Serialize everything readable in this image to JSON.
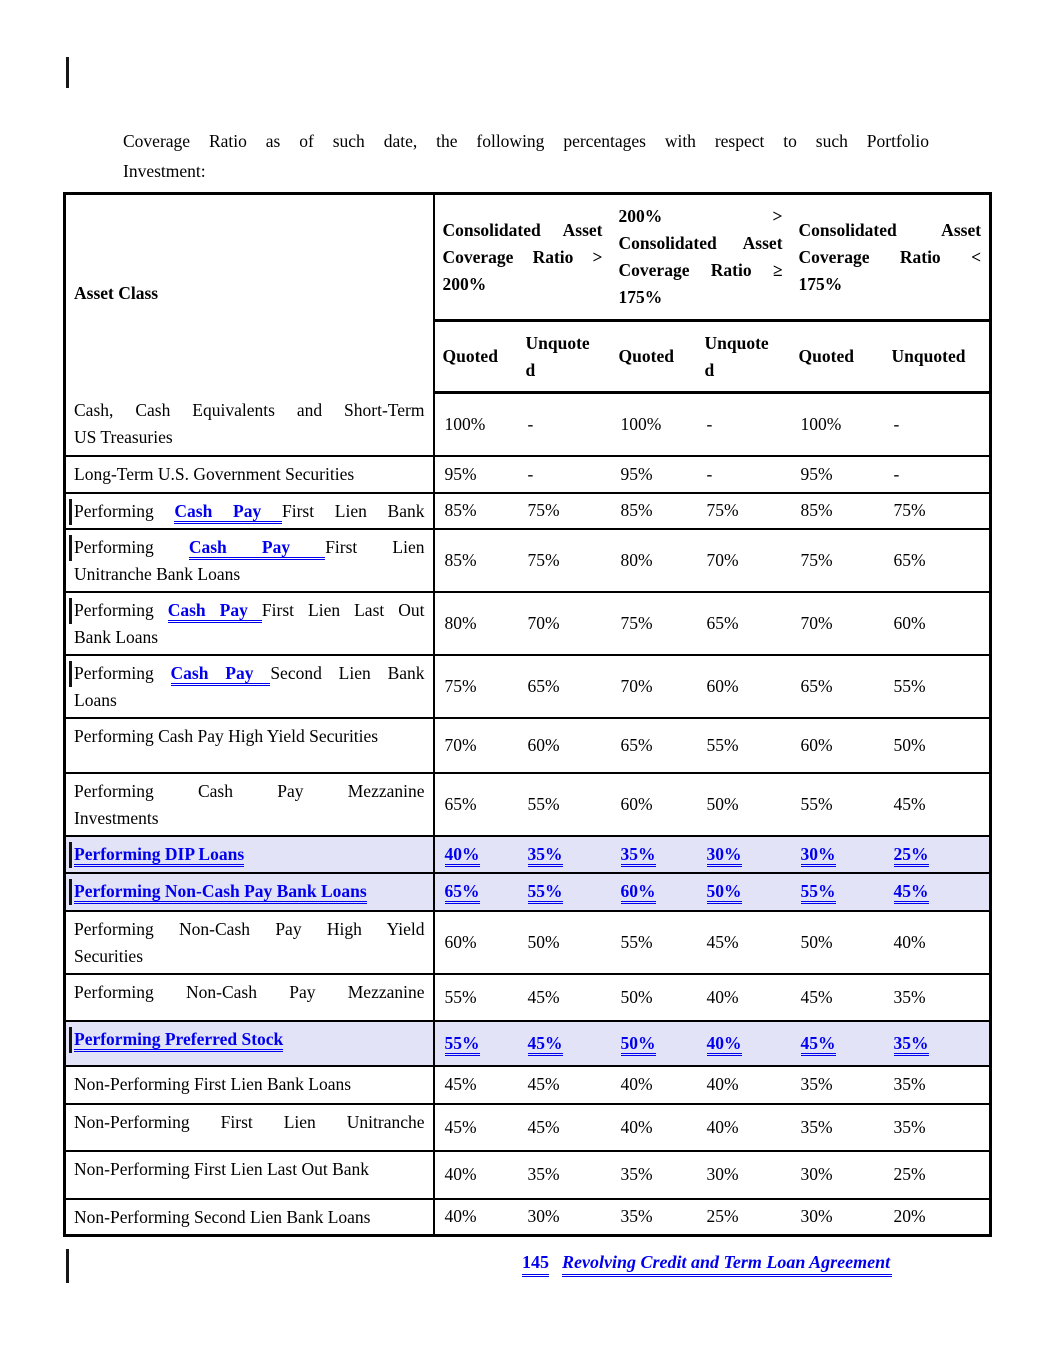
{
  "intro": {
    "line1": "Coverage Ratio as of such date, the following percentages with respect to such Portfolio",
    "line2": "Investment:"
  },
  "footer": {
    "page_number": "145",
    "doc_title": "Revolving Credit and Term Loan Agreement"
  },
  "colors": {
    "link_blue": "#0000EE",
    "highlight_bg": "#E3E3F7",
    "border_black": "#000000"
  },
  "table": {
    "asset_class_label": "Asset Class",
    "group_headers": [
      {
        "lines": [
          "Consolidated Asset",
          "Coverage Ratio >",
          "200%"
        ]
      },
      {
        "lines": [
          "200% >",
          "Consolidated Asset",
          "Coverage Ratio ≥",
          "175%"
        ]
      },
      {
        "lines": [
          "Consolidated Asset",
          "Coverage Ratio <",
          "175%"
        ]
      }
    ],
    "sub_headers": [
      {
        "lines": [
          "Quoted"
        ]
      },
      {
        "lines": [
          "Unquote",
          "d"
        ]
      },
      {
        "lines": [
          "Quoted"
        ]
      },
      {
        "lines": [
          "Unquote",
          "d"
        ]
      },
      {
        "lines": [
          "Quoted"
        ]
      },
      {
        "lines": [
          "Unquoted"
        ]
      }
    ],
    "rows": [
      {
        "label_lines": [
          "Cash, Cash Equivalents and Short-Term",
          "US Treasuries"
        ],
        "j": "auto",
        "bar": false,
        "highlight": false,
        "values": [
          "100%",
          "-",
          "100%",
          "-",
          "100%",
          "-"
        ]
      },
      {
        "label_lines": [
          "Long-Term U.S. Government Securities"
        ],
        "j": "none",
        "bar": false,
        "highlight": false,
        "values": [
          "95%",
          "-",
          "95%",
          "-",
          "95%",
          "-"
        ]
      },
      {
        "label_lines": [
          [
            {
              "t": "Performing ",
              "s": "p"
            },
            {
              "t": "Cash Pay ",
              "s": "l"
            },
            {
              "t": "First Lien Bank",
              "s": "p"
            }
          ]
        ],
        "j": "all",
        "bar": true,
        "highlight": false,
        "values": [
          "85%",
          "75%",
          "85%",
          "75%",
          "85%",
          "75%"
        ]
      },
      {
        "label_lines": [
          [
            {
              "t": "Performing ",
              "s": "p"
            },
            {
              "t": "Cash Pay ",
              "s": "l"
            },
            {
              "t": "First Lien",
              "s": "p"
            }
          ],
          "Unitranche Bank Loans"
        ],
        "j": "auto",
        "bar": true,
        "highlight": false,
        "values": [
          "85%",
          "75%",
          "80%",
          "70%",
          "75%",
          "65%"
        ]
      },
      {
        "label_lines": [
          [
            {
              "t": "Performing ",
              "s": "p"
            },
            {
              "t": "Cash Pay ",
              "s": "l"
            },
            {
              "t": "First Lien Last Out",
              "s": "p"
            }
          ],
          "Bank Loans"
        ],
        "j": "auto",
        "bar": true,
        "highlight": false,
        "values": [
          "80%",
          "70%",
          "75%",
          "65%",
          "70%",
          "60%"
        ]
      },
      {
        "label_lines": [
          [
            {
              "t": "Performing ",
              "s": "p"
            },
            {
              "t": "Cash Pay ",
              "s": "l"
            },
            {
              "t": "Second Lien Bank",
              "s": "p"
            }
          ],
          "Loans"
        ],
        "j": "auto",
        "bar": true,
        "highlight": false,
        "values": [
          "75%",
          "65%",
          "70%",
          "60%",
          "65%",
          "55%"
        ]
      },
      {
        "label_lines": [
          "Performing Cash Pay High Yield Securities"
        ],
        "j": "none",
        "bar": false,
        "highlight": false,
        "values": [
          "70%",
          "60%",
          "65%",
          "55%",
          "60%",
          "50%"
        ]
      },
      {
        "label_lines": [
          "Performing Cash Pay Mezzanine",
          "Investments"
        ],
        "j": "auto",
        "bar": false,
        "highlight": false,
        "values": [
          "65%",
          "55%",
          "60%",
          "50%",
          "55%",
          "45%"
        ]
      },
      {
        "label_lines": [
          "Performing DIP Loans"
        ],
        "j": "none",
        "bar": true,
        "highlight": true,
        "values": [
          "40%",
          "35%",
          "35%",
          "30%",
          "30%",
          "25%"
        ]
      },
      {
        "label_lines": [
          "Performing Non-Cash Pay Bank Loans"
        ],
        "j": "none",
        "bar": true,
        "highlight": true,
        "values": [
          "65%",
          "55%",
          "60%",
          "50%",
          "55%",
          "45%"
        ]
      },
      {
        "label_lines": [
          "Performing Non-Cash Pay High Yield",
          "Securities"
        ],
        "j": "auto",
        "bar": false,
        "highlight": false,
        "values": [
          "60%",
          "50%",
          "55%",
          "45%",
          "50%",
          "40%"
        ]
      },
      {
        "label_lines": [
          "Performing Non-Cash Pay Mezzanine"
        ],
        "j": "all",
        "bar": false,
        "highlight": false,
        "values": [
          "55%",
          "45%",
          "50%",
          "40%",
          "45%",
          "35%"
        ]
      },
      {
        "label_lines": [
          "Performing Preferred Stock"
        ],
        "j": "none",
        "bar": true,
        "highlight": true,
        "values": [
          "55%",
          "45%",
          "50%",
          "40%",
          "45%",
          "35%"
        ]
      },
      {
        "label_lines": [
          "Non-Performing First Lien Bank Loans"
        ],
        "j": "none",
        "bar": false,
        "highlight": false,
        "values": [
          "45%",
          "45%",
          "40%",
          "40%",
          "35%",
          "35%"
        ]
      },
      {
        "label_lines": [
          "Non-Performing First Lien Unitranche"
        ],
        "j": "all",
        "bar": false,
        "highlight": false,
        "values": [
          "45%",
          "45%",
          "40%",
          "40%",
          "35%",
          "35%"
        ]
      },
      {
        "label_lines": [
          "Non-Performing First Lien Last Out Bank"
        ],
        "j": "none",
        "bar": false,
        "highlight": false,
        "values": [
          "40%",
          "35%",
          "35%",
          "30%",
          "30%",
          "25%"
        ]
      },
      {
        "label_lines": [
          "Non-Performing Second Lien Bank Loans"
        ],
        "j": "none",
        "bar": false,
        "highlight": false,
        "values": [
          "40%",
          "30%",
          "35%",
          "25%",
          "30%",
          "20%"
        ]
      }
    ]
  }
}
